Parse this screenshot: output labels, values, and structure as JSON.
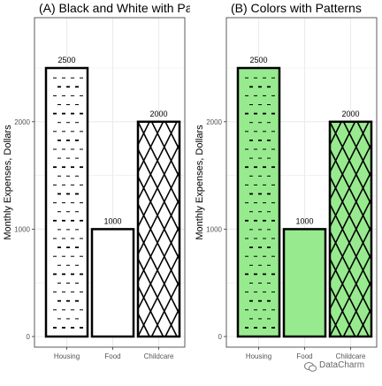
{
  "chart_data": [
    {
      "type": "bar",
      "title": "(A) Black and White with Patterns",
      "ylabel": "Monthly Expenses, Dollars",
      "xlabel": "",
      "categories": [
        "Housing",
        "Food",
        "Childcare"
      ],
      "values": [
        2500,
        1000,
        2000
      ],
      "data_labels": [
        "2500",
        "1000",
        "2000"
      ],
      "patterns": [
        "dashes",
        "none",
        "crosshatch"
      ],
      "fill_color": "#ffffff",
      "ylim": [
        0,
        2650
      ],
      "yticks": [
        0,
        1000,
        2000
      ],
      "ytick_labels": [
        "0",
        "1000",
        "2000"
      ],
      "grid": true
    },
    {
      "type": "bar",
      "title": "(B) Colors with Patterns",
      "ylabel": "Monthly Expenses, Dollars",
      "xlabel": "",
      "categories": [
        "Housing",
        "Food",
        "Childcare"
      ],
      "values": [
        2500,
        1000,
        2000
      ],
      "data_labels": [
        "2500",
        "1000",
        "2000"
      ],
      "patterns": [
        "dashes",
        "none",
        "crosshatch"
      ],
      "fill_color": "#98ea8f",
      "ylim": [
        0,
        2650
      ],
      "yticks": [
        0,
        1000,
        2000
      ],
      "ytick_labels": [
        "0",
        "1000",
        "2000"
      ],
      "grid": true
    }
  ],
  "colors": {
    "bar_outline": "#000000",
    "grid": "#ebebeb",
    "panel_border": "#333333",
    "green_fill": "#98ea8f"
  },
  "watermark": {
    "text": "DataCharm",
    "icon": "wechat-icon"
  }
}
